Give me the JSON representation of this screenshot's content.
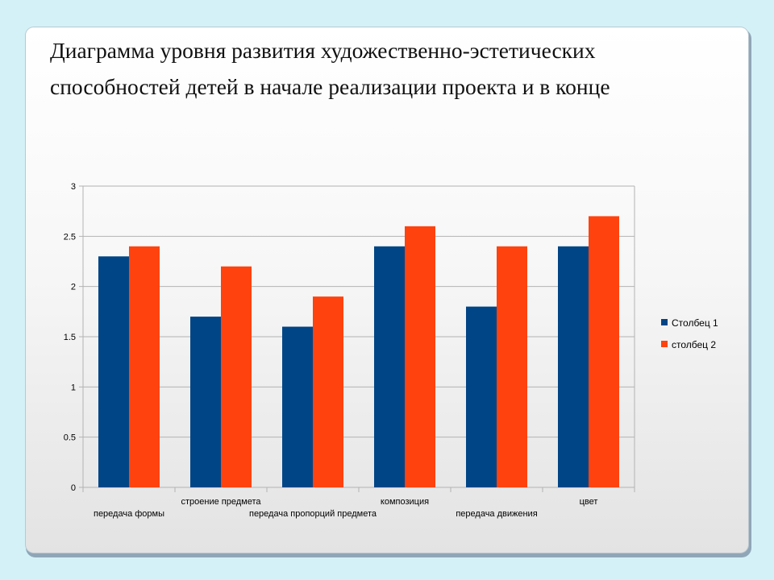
{
  "title": "Диаграмма уровня развития художественно-эстетических способностей детей в начале реализации проекта и в конце",
  "colors": {
    "series1": "#004586",
    "series2": "#ff420e"
  },
  "chart_data": {
    "type": "bar",
    "categories": [
      "передача формы",
      "строение предмета",
      "передача пропорций предмета",
      "композиция",
      "передача движения",
      "цвет"
    ],
    "series": [
      {
        "name": "Столбец 1",
        "values": [
          2.3,
          1.7,
          1.6,
          2.4,
          1.8,
          2.4
        ]
      },
      {
        "name": "столбец 2",
        "values": [
          2.4,
          2.2,
          1.9,
          2.6,
          2.4,
          2.7
        ]
      }
    ],
    "yticks": [
      "0",
      "0.5",
      "1",
      "1.5",
      "2",
      "2.5",
      "3"
    ],
    "ylim": [
      0,
      3
    ],
    "grid": true,
    "legend": "right"
  }
}
